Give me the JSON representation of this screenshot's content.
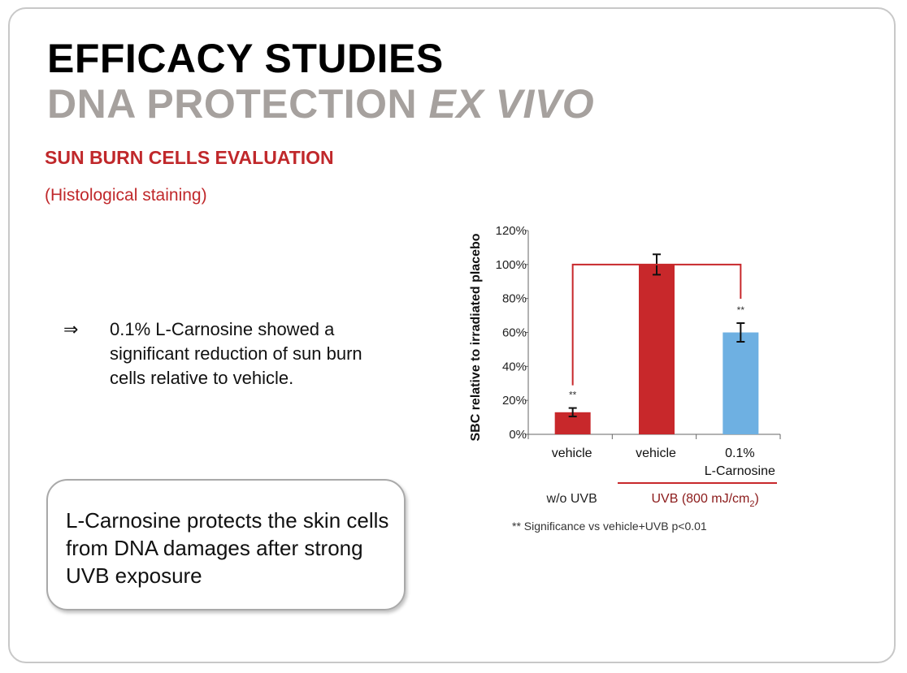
{
  "title": {
    "line1": "EFFICACY STUDIES",
    "line2_plain": "DNA PROTECTION ",
    "line2_italic": "EX VIVO"
  },
  "section": {
    "heading": "SUN BURN CELLS EVALUATION",
    "note": "(Histological staining)"
  },
  "bullet": {
    "arrow": "⇒",
    "text": "0.1% L-Carnosine showed a significant reduction of sun burn cells relative to vehicle."
  },
  "callout": {
    "text": "L-Carnosine protects the skin cells from DNA damages after strong UVB exposure"
  },
  "chart_data": {
    "type": "bar",
    "ylabel": "SBC relative to irradiated placebo",
    "ylim": [
      0,
      120
    ],
    "yticks": [
      "0%",
      "20%",
      "40%",
      "60%",
      "80%",
      "100%",
      "120%"
    ],
    "categories": [
      {
        "lines": [
          "vehicle"
        ]
      },
      {
        "lines": [
          "vehicle"
        ]
      },
      {
        "lines": [
          "0.1%",
          "L-Carnosine"
        ]
      }
    ],
    "values": [
      13,
      100,
      60
    ],
    "errors": [
      2.5,
      6,
      5.5
    ],
    "colors": [
      "#c8282b",
      "#c8282b",
      "#6eb0e2"
    ],
    "significance": [
      "**",
      "",
      "**"
    ],
    "groups": [
      {
        "label": "w/o UVB",
        "color": "#222222"
      },
      {
        "label_main": "UVB (800 mJ/cm",
        "label_sub": "2",
        "label_end": ")",
        "color": "#8b1a1a"
      }
    ],
    "footnote": "** Significance vs vehicle+UVB p<0.01",
    "bracket_color": "#c8282b"
  }
}
